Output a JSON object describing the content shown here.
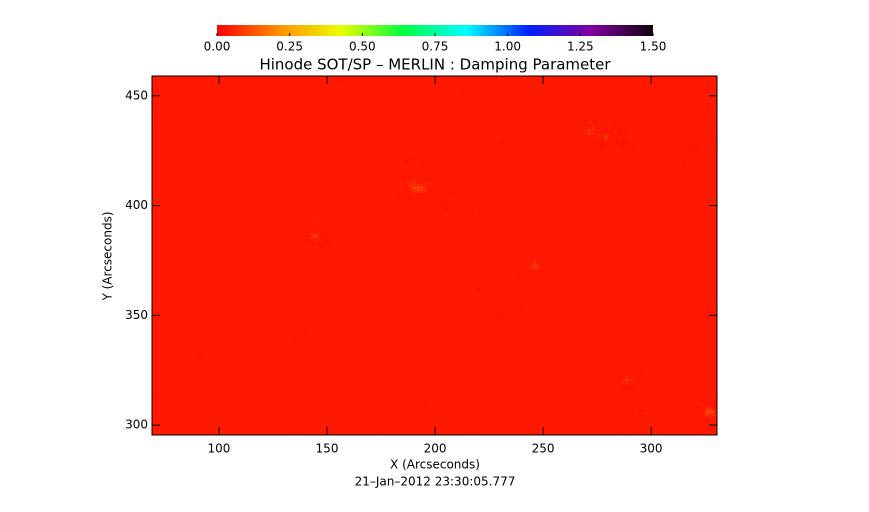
{
  "chart_data": {
    "type": "heatmap",
    "title": "Hinode SOT/SP – MERLIN : Damping Parameter",
    "xlabel": "X (Arcseconds)",
    "ylabel": "Y (Arcseconds)",
    "footer": "21–Jan–2012 23:30:05.777",
    "xlim": [
      69,
      330.5
    ],
    "xticks": [
      100,
      150,
      200,
      250,
      300
    ],
    "ylim": [
      295.5,
      459
    ],
    "yticks": [
      300,
      350,
      400,
      450
    ],
    "colorbar": {
      "lim": [
        0,
        1.5
      ],
      "ticks": [
        {
          "value": 0,
          "label": "0.00"
        },
        {
          "value": 0.25,
          "label": "0.25"
        },
        {
          "value": 0.5,
          "label": "0.50"
        },
        {
          "value": 0.75,
          "label": "0.75"
        },
        {
          "value": 1,
          "label": "1.00"
        },
        {
          "value": 1.25,
          "label": "1.25"
        },
        {
          "value": 1.5,
          "label": "1.50"
        }
      ],
      "colors": [
        "#ff0000",
        "#ff9000",
        "#e8ff00",
        "#00ff40",
        "#00ffff",
        "#0020ff",
        "#8000a0",
        "#100010"
      ]
    }
  }
}
